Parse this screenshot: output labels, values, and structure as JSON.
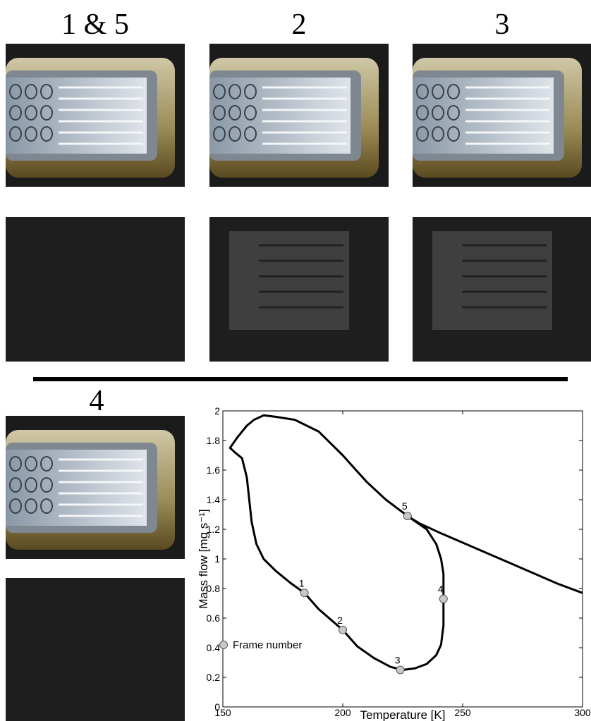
{
  "panel_labels": [
    "1 & 5",
    "2",
    "3",
    "4"
  ],
  "chart_data": {
    "type": "line",
    "xlabel": "Temperature [K]",
    "ylabel": "Mass flow [mg s⁻¹]",
    "xlim": [
      150,
      300
    ],
    "ylim": [
      0,
      2
    ],
    "xticks": [
      150,
      200,
      250,
      300
    ],
    "yticks": [
      0,
      0.2,
      0.4,
      0.6,
      0.8,
      1,
      1.2,
      1.4,
      1.6,
      1.8,
      2
    ],
    "series": [
      {
        "color": "#000000",
        "x": [
          300,
          290,
          280,
          270,
          260,
          250,
          240,
          232,
          227,
          235,
          239,
          241,
          242,
          242,
          242,
          241,
          239,
          235,
          230,
          225,
          220,
          213,
          206,
          200,
          195,
          190,
          184,
          178,
          172,
          167,
          164,
          162,
          161,
          160,
          158,
          155,
          153,
          156,
          160,
          163,
          167,
          172,
          180,
          190,
          200,
          210,
          218,
          227
        ],
        "values": [
          0.77,
          0.83,
          0.9,
          0.97,
          1.04,
          1.11,
          1.18,
          1.24,
          1.29,
          1.2,
          1.1,
          1,
          0.9,
          0.73,
          0.55,
          0.42,
          0.35,
          0.29,
          0.26,
          0.25,
          0.27,
          0.33,
          0.41,
          0.52,
          0.59,
          0.66,
          0.77,
          0.84,
          0.92,
          1.0,
          1.1,
          1.25,
          1.4,
          1.55,
          1.68,
          1.72,
          1.75,
          1.82,
          1.9,
          1.94,
          1.97,
          1.96,
          1.94,
          1.86,
          1.7,
          1.52,
          1.4,
          1.29
        ]
      },
      {
        "type": "scatter",
        "name": "Frame number",
        "color": "#c8c8c8",
        "x": [
          184,
          200,
          224,
          242,
          227
        ],
        "values": [
          0.77,
          0.52,
          0.25,
          0.73,
          1.29
        ],
        "labels": [
          "1",
          "2",
          "3",
          "4",
          "5"
        ]
      }
    ]
  }
}
